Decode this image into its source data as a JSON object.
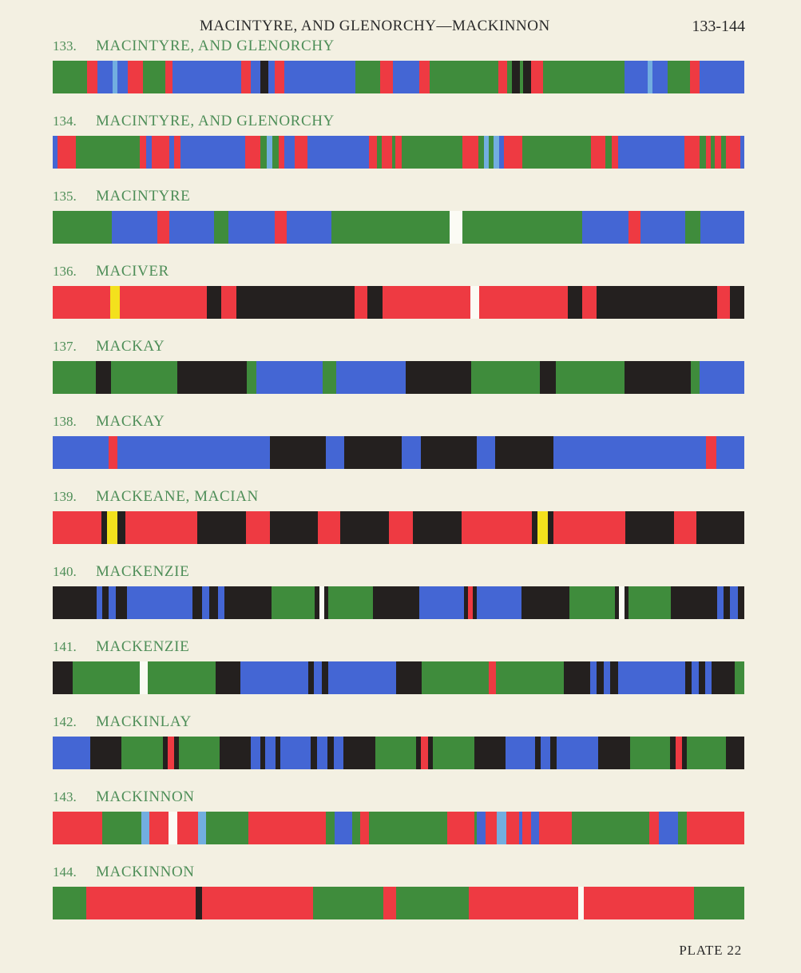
{
  "header": {
    "title": "MACINTYRE, AND GLENORCHY—MACKINNON",
    "range": "133-144"
  },
  "footer": {
    "plate": "PLATE 22"
  },
  "colors": {
    "G": "#3f8c3c",
    "B": "#4466d4",
    "R": "#ee3a42",
    "K": "#24201f",
    "L": "#72aee0",
    "W": "#fbfbf4",
    "Y": "#f3e11d"
  },
  "entries": [
    {
      "number": "133.",
      "name": "MACINTYRE, AND GLENORCHY",
      "stripes": [
        [
          "G",
          42
        ],
        [
          "R",
          13
        ],
        [
          "B",
          18
        ],
        [
          "L",
          6
        ],
        [
          "B",
          13
        ],
        [
          "R",
          18
        ],
        [
          "G",
          27
        ],
        [
          "R",
          9
        ],
        [
          "B",
          84
        ],
        [
          "R",
          12
        ],
        [
          "B",
          11
        ],
        [
          "K",
          10
        ],
        [
          "B",
          8
        ],
        [
          "R",
          12
        ],
        [
          "B",
          86
        ],
        [
          "G",
          31
        ],
        [
          "R",
          15
        ],
        [
          "B",
          32
        ],
        [
          "R",
          13
        ],
        [
          "G",
          84
        ],
        [
          "R",
          11
        ],
        [
          "G",
          5
        ],
        [
          "K",
          10
        ],
        [
          "G",
          4
        ],
        [
          "K",
          10
        ],
        [
          "R",
          14
        ],
        [
          "G",
          100
        ],
        [
          "B",
          28
        ],
        [
          "L",
          6
        ],
        [
          "B",
          18
        ],
        [
          "G",
          28
        ],
        [
          "R",
          11
        ],
        [
          "B",
          55
        ]
      ]
    },
    {
      "number": "134.",
      "name": "MACINTYRE, AND GLENORCHY",
      "stripes": [
        [
          "B",
          6
        ],
        [
          "R",
          21
        ],
        [
          "G",
          76
        ],
        [
          "R",
          7
        ],
        [
          "B",
          7
        ],
        [
          "R",
          21
        ],
        [
          "B",
          5
        ],
        [
          "R",
          8
        ],
        [
          "B",
          76
        ],
        [
          "R",
          18
        ],
        [
          "G",
          8
        ],
        [
          "L",
          6
        ],
        [
          "G",
          8
        ],
        [
          "R",
          7
        ],
        [
          "B",
          12
        ],
        [
          "R",
          15
        ],
        [
          "B",
          73
        ],
        [
          "R",
          9
        ],
        [
          "G",
          6
        ],
        [
          "R",
          12
        ],
        [
          "G",
          4
        ],
        [
          "R",
          7
        ],
        [
          "G",
          72
        ],
        [
          "R",
          19
        ],
        [
          "G",
          6
        ],
        [
          "L",
          6
        ],
        [
          "G",
          6
        ],
        [
          "L",
          6
        ],
        [
          "B",
          6
        ],
        [
          "R",
          22
        ],
        [
          "G",
          81
        ],
        [
          "R",
          17
        ],
        [
          "G",
          7
        ],
        [
          "R",
          8
        ],
        [
          "B",
          78
        ],
        [
          "R",
          18
        ],
        [
          "G",
          8
        ],
        [
          "R",
          5
        ],
        [
          "G",
          5
        ],
        [
          "R",
          8
        ],
        [
          "G",
          5
        ],
        [
          "R",
          17
        ],
        [
          "B",
          5
        ]
      ]
    },
    {
      "number": "135.",
      "name": "MACINTYRE",
      "stripes": [
        [
          "G",
          74
        ],
        [
          "B",
          56
        ],
        [
          "R",
          15
        ],
        [
          "B",
          56
        ],
        [
          "G",
          18
        ],
        [
          "B",
          58
        ],
        [
          "R",
          15
        ],
        [
          "B",
          55
        ],
        [
          "G",
          148
        ],
        [
          "W",
          16
        ],
        [
          "G",
          149
        ],
        [
          "B",
          58
        ],
        [
          "R",
          15
        ],
        [
          "B",
          55
        ],
        [
          "G",
          19
        ],
        [
          "B",
          55
        ]
      ]
    },
    {
      "number": "136.",
      "name": "MACIVER",
      "stripes": [
        [
          "R",
          72
        ],
        [
          "Y",
          12
        ],
        [
          "R",
          108
        ],
        [
          "K",
          18
        ],
        [
          "R",
          19
        ],
        [
          "K",
          147
        ],
        [
          "R",
          16
        ],
        [
          "K",
          19
        ],
        [
          "R",
          110
        ],
        [
          "W",
          11
        ],
        [
          "R",
          110
        ],
        [
          "K",
          18
        ],
        [
          "R",
          18
        ],
        [
          "K",
          150
        ],
        [
          "R",
          16
        ],
        [
          "K",
          18
        ]
      ]
    },
    {
      "number": "137.",
      "name": "MACKAY",
      "stripes": [
        [
          "G",
          53
        ],
        [
          "K",
          19
        ],
        [
          "G",
          82
        ],
        [
          "K",
          85
        ],
        [
          "G",
          12
        ],
        [
          "B",
          82
        ],
        [
          "G",
          17
        ],
        [
          "B",
          85
        ],
        [
          "K",
          81
        ],
        [
          "G",
          85
        ],
        [
          "K",
          20
        ],
        [
          "G",
          84
        ],
        [
          "K",
          82
        ],
        [
          "G",
          11
        ],
        [
          "B",
          55
        ]
      ]
    },
    {
      "number": "138.",
      "name": "MACKAY",
      "stripes": [
        [
          "B",
          70
        ],
        [
          "R",
          11
        ],
        [
          "B",
          191
        ],
        [
          "K",
          70
        ],
        [
          "B",
          23
        ],
        [
          "K",
          72
        ],
        [
          "B",
          24
        ],
        [
          "K",
          70
        ],
        [
          "B",
          23
        ],
        [
          "K",
          73
        ],
        [
          "B",
          191
        ],
        [
          "R",
          13
        ],
        [
          "B",
          35
        ]
      ]
    },
    {
      "number": "139.",
      "name": "MACKEANE, MACIAN",
      "stripes": [
        [
          "R",
          60
        ],
        [
          "K",
          7
        ],
        [
          "Y",
          13
        ],
        [
          "K",
          10
        ],
        [
          "R",
          89
        ],
        [
          "K",
          60
        ],
        [
          "R",
          30
        ],
        [
          "K",
          59
        ],
        [
          "R",
          28
        ],
        [
          "K",
          60
        ],
        [
          "R",
          30
        ],
        [
          "K",
          60
        ],
        [
          "R",
          87
        ],
        [
          "K",
          7
        ],
        [
          "Y",
          13
        ],
        [
          "K",
          7
        ],
        [
          "R",
          89
        ],
        [
          "K",
          60
        ],
        [
          "R",
          28
        ],
        [
          "K",
          59
        ]
      ]
    },
    {
      "number": "140.",
      "name": "MACKENZIE",
      "stripes": [
        [
          "K",
          53
        ],
        [
          "B",
          7
        ],
        [
          "K",
          8
        ],
        [
          "B",
          9
        ],
        [
          "K",
          13
        ],
        [
          "B",
          80
        ],
        [
          "K",
          12
        ],
        [
          "B",
          8
        ],
        [
          "K",
          11
        ],
        [
          "B",
          8
        ],
        [
          "K",
          57
        ],
        [
          "G",
          53
        ],
        [
          "K",
          5
        ],
        [
          "W",
          6
        ],
        [
          "K",
          5
        ],
        [
          "G",
          54
        ],
        [
          "K",
          57
        ],
        [
          "B",
          54
        ],
        [
          "K",
          5
        ],
        [
          "R",
          6
        ],
        [
          "K",
          5
        ],
        [
          "B",
          54
        ],
        [
          "K",
          58
        ],
        [
          "G",
          56
        ],
        [
          "K",
          5
        ],
        [
          "W",
          6
        ],
        [
          "K",
          5
        ],
        [
          "G",
          52
        ],
        [
          "K",
          56
        ],
        [
          "B",
          8
        ],
        [
          "K",
          8
        ],
        [
          "B",
          9
        ],
        [
          "K",
          8
        ]
      ]
    },
    {
      "number": "141.",
      "name": "MACKENZIE",
      "stripes": [
        [
          "K",
          24
        ],
        [
          "G",
          82
        ],
        [
          "W",
          10
        ],
        [
          "G",
          83
        ],
        [
          "K",
          30
        ],
        [
          "B",
          83
        ],
        [
          "K",
          7
        ],
        [
          "B",
          9
        ],
        [
          "K",
          8
        ],
        [
          "B",
          83
        ],
        [
          "K",
          31
        ],
        [
          "G",
          82
        ],
        [
          "R",
          9
        ],
        [
          "G",
          83
        ],
        [
          "K",
          32
        ],
        [
          "B",
          8
        ],
        [
          "K",
          8
        ],
        [
          "B",
          8
        ],
        [
          "K",
          10
        ],
        [
          "B",
          82
        ],
        [
          "K",
          8
        ],
        [
          "B",
          8
        ],
        [
          "K",
          8
        ],
        [
          "B",
          8
        ],
        [
          "K",
          28
        ],
        [
          "G",
          12
        ]
      ]
    },
    {
      "number": "142.",
      "name": "MACKINLAY",
      "stripes": [
        [
          "B",
          44
        ],
        [
          "K",
          36
        ],
        [
          "G",
          48
        ],
        [
          "K",
          6
        ],
        [
          "R",
          7
        ],
        [
          "K",
          6
        ],
        [
          "G",
          47
        ],
        [
          "K",
          36
        ],
        [
          "B",
          11
        ],
        [
          "K",
          6
        ],
        [
          "B",
          12
        ],
        [
          "K",
          6
        ],
        [
          "B",
          35
        ],
        [
          "K",
          7
        ],
        [
          "B",
          12
        ],
        [
          "K",
          8
        ],
        [
          "B",
          11
        ],
        [
          "K",
          37
        ],
        [
          "G",
          47
        ],
        [
          "K",
          6
        ],
        [
          "R",
          8
        ],
        [
          "K",
          6
        ],
        [
          "G",
          48
        ],
        [
          "K",
          36
        ],
        [
          "B",
          35
        ],
        [
          "K",
          6
        ],
        [
          "B",
          11
        ],
        [
          "K",
          8
        ],
        [
          "B",
          48
        ],
        [
          "K",
          37
        ],
        [
          "G",
          47
        ],
        [
          "K",
          6
        ],
        [
          "R",
          8
        ],
        [
          "K",
          5
        ],
        [
          "G",
          46
        ],
        [
          "K",
          21
        ]
      ]
    },
    {
      "number": "143.",
      "name": "MACKINNON",
      "stripes": [
        [
          "R",
          62
        ],
        [
          "G",
          48
        ],
        [
          "L",
          10
        ],
        [
          "R",
          24
        ],
        [
          "W",
          11
        ],
        [
          "R",
          26
        ],
        [
          "L",
          10
        ],
        [
          "G",
          53
        ],
        [
          "R",
          96
        ],
        [
          "G",
          11
        ],
        [
          "B",
          22
        ],
        [
          "G",
          10
        ],
        [
          "R",
          11
        ],
        [
          "G",
          98
        ],
        [
          "R",
          34
        ],
        [
          "G",
          3
        ],
        [
          "B",
          10
        ],
        [
          "R",
          14
        ],
        [
          "L",
          12
        ],
        [
          "R",
          16
        ],
        [
          "B",
          4
        ],
        [
          "R",
          11
        ],
        [
          "B",
          10
        ],
        [
          "R",
          41
        ],
        [
          "G",
          97
        ],
        [
          "R",
          11
        ],
        [
          "B",
          24
        ],
        [
          "G",
          11
        ],
        [
          "R",
          72
        ]
      ]
    },
    {
      "number": "144.",
      "name": "MACKINNON",
      "stripes": [
        [
          "G",
          42
        ],
        [
          "R",
          136
        ],
        [
          "K",
          8
        ],
        [
          "R",
          138
        ],
        [
          "G",
          87
        ],
        [
          "R",
          16
        ],
        [
          "G",
          90
        ],
        [
          "R",
          136
        ],
        [
          "W",
          7
        ],
        [
          "R",
          137
        ],
        [
          "G",
          63
        ]
      ]
    }
  ]
}
